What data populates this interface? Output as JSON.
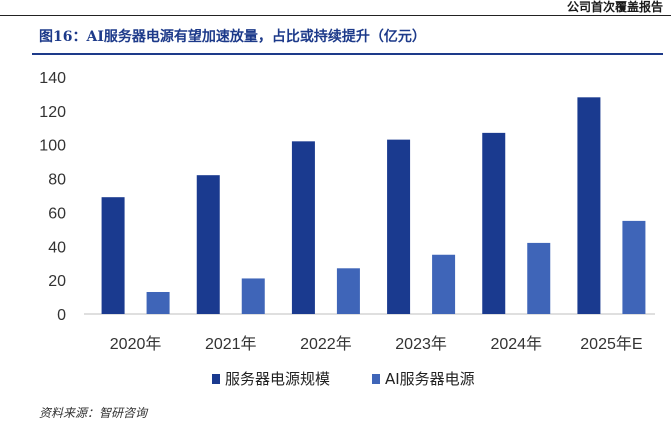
{
  "header": {
    "report_type": "公司首次覆盖报告"
  },
  "figure": {
    "title": "图16：AI服务器电源有望加速放量，占比或持续提升（亿元）"
  },
  "source": {
    "text": "资料来源：智研咨询"
  },
  "colors": {
    "series1": "#1a3a8f",
    "series2": "#3f65b8",
    "title": "#1d3a8a"
  },
  "chart_data": {
    "type": "bar",
    "categories": [
      "2020年",
      "2021年",
      "2022年",
      "2023年",
      "2024年",
      "2025年E"
    ],
    "series": [
      {
        "name": "服务器电源规模",
        "values": [
          69,
          82,
          102,
          103,
          107,
          128
        ]
      },
      {
        "name": "AI服务器电源",
        "values": [
          13,
          21,
          27,
          35,
          42,
          55
        ]
      }
    ],
    "yticks": [
      0,
      20,
      40,
      60,
      80,
      100,
      120,
      140
    ],
    "ylim": [
      0,
      140
    ],
    "grid": false,
    "legend": "bottom"
  }
}
